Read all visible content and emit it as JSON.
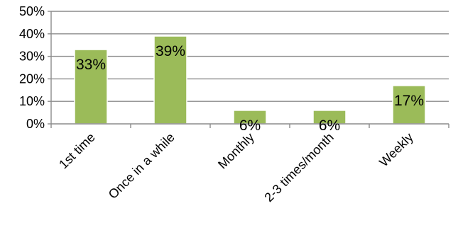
{
  "chart_data": {
    "type": "bar",
    "categories": [
      "1st time",
      "Once in a while",
      "Monthly",
      "2-3 times/month",
      "Weekly"
    ],
    "values": [
      33,
      39,
      6,
      6,
      17
    ],
    "data_labels": [
      "33%",
      "39%",
      "6%",
      "6%",
      "17%"
    ],
    "ylim": [
      0,
      50
    ],
    "y_ticks": [
      0,
      10,
      20,
      30,
      40,
      50
    ],
    "y_tick_labels": [
      "0%",
      "10%",
      "20%",
      "30%",
      "40%",
      "50%"
    ],
    "grid": true,
    "legend": "none",
    "colors": {
      "bar_fill": "#9BBB59",
      "bar_stroke": "#ffffff",
      "gridline": "#8C8C8C",
      "axis": "#8C8C8C",
      "text": "#000000"
    }
  }
}
